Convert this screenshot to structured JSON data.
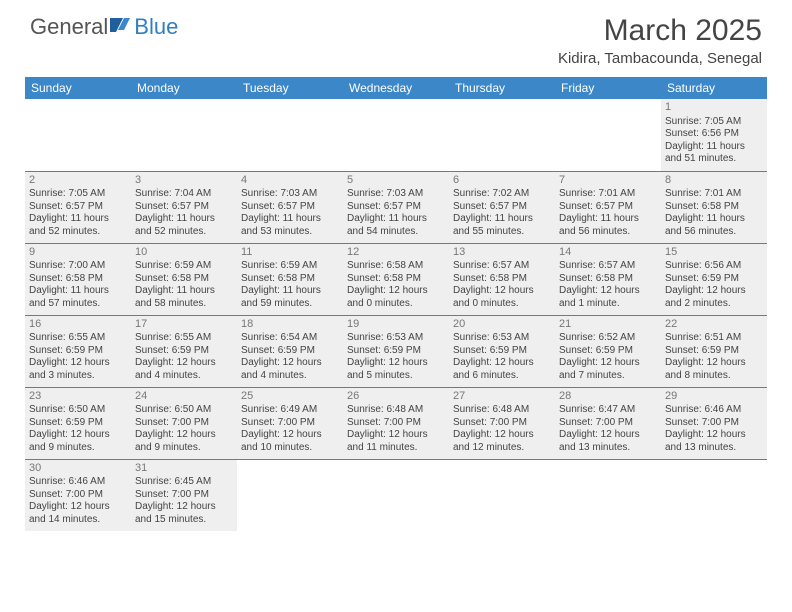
{
  "logo": {
    "text1": "General",
    "text2": "Blue"
  },
  "title": "March 2025",
  "location": "Kidira, Tambacounda, Senegal",
  "dayHeaders": [
    "Sunday",
    "Monday",
    "Tuesday",
    "Wednesday",
    "Thursday",
    "Friday",
    "Saturday"
  ],
  "colors": {
    "headerBg": "#3b87c8",
    "headerText": "#ffffff",
    "border": "#3b87c8",
    "shaded": "#efefef",
    "logoBlue": "#2f7fc4"
  },
  "weeks": [
    [
      null,
      null,
      null,
      null,
      null,
      null,
      {
        "n": "1",
        "sr": "Sunrise: 7:05 AM",
        "ss": "Sunset: 6:56 PM",
        "dl": "Daylight: 11 hours and 51 minutes."
      }
    ],
    [
      {
        "n": "2",
        "sr": "Sunrise: 7:05 AM",
        "ss": "Sunset: 6:57 PM",
        "dl": "Daylight: 11 hours and 52 minutes."
      },
      {
        "n": "3",
        "sr": "Sunrise: 7:04 AM",
        "ss": "Sunset: 6:57 PM",
        "dl": "Daylight: 11 hours and 52 minutes."
      },
      {
        "n": "4",
        "sr": "Sunrise: 7:03 AM",
        "ss": "Sunset: 6:57 PM",
        "dl": "Daylight: 11 hours and 53 minutes."
      },
      {
        "n": "5",
        "sr": "Sunrise: 7:03 AM",
        "ss": "Sunset: 6:57 PM",
        "dl": "Daylight: 11 hours and 54 minutes."
      },
      {
        "n": "6",
        "sr": "Sunrise: 7:02 AM",
        "ss": "Sunset: 6:57 PM",
        "dl": "Daylight: 11 hours and 55 minutes."
      },
      {
        "n": "7",
        "sr": "Sunrise: 7:01 AM",
        "ss": "Sunset: 6:57 PM",
        "dl": "Daylight: 11 hours and 56 minutes."
      },
      {
        "n": "8",
        "sr": "Sunrise: 7:01 AM",
        "ss": "Sunset: 6:58 PM",
        "dl": "Daylight: 11 hours and 56 minutes."
      }
    ],
    [
      {
        "n": "9",
        "sr": "Sunrise: 7:00 AM",
        "ss": "Sunset: 6:58 PM",
        "dl": "Daylight: 11 hours and 57 minutes."
      },
      {
        "n": "10",
        "sr": "Sunrise: 6:59 AM",
        "ss": "Sunset: 6:58 PM",
        "dl": "Daylight: 11 hours and 58 minutes."
      },
      {
        "n": "11",
        "sr": "Sunrise: 6:59 AM",
        "ss": "Sunset: 6:58 PM",
        "dl": "Daylight: 11 hours and 59 minutes."
      },
      {
        "n": "12",
        "sr": "Sunrise: 6:58 AM",
        "ss": "Sunset: 6:58 PM",
        "dl": "Daylight: 12 hours and 0 minutes."
      },
      {
        "n": "13",
        "sr": "Sunrise: 6:57 AM",
        "ss": "Sunset: 6:58 PM",
        "dl": "Daylight: 12 hours and 0 minutes."
      },
      {
        "n": "14",
        "sr": "Sunrise: 6:57 AM",
        "ss": "Sunset: 6:58 PM",
        "dl": "Daylight: 12 hours and 1 minute."
      },
      {
        "n": "15",
        "sr": "Sunrise: 6:56 AM",
        "ss": "Sunset: 6:59 PM",
        "dl": "Daylight: 12 hours and 2 minutes."
      }
    ],
    [
      {
        "n": "16",
        "sr": "Sunrise: 6:55 AM",
        "ss": "Sunset: 6:59 PM",
        "dl": "Daylight: 12 hours and 3 minutes."
      },
      {
        "n": "17",
        "sr": "Sunrise: 6:55 AM",
        "ss": "Sunset: 6:59 PM",
        "dl": "Daylight: 12 hours and 4 minutes."
      },
      {
        "n": "18",
        "sr": "Sunrise: 6:54 AM",
        "ss": "Sunset: 6:59 PM",
        "dl": "Daylight: 12 hours and 4 minutes."
      },
      {
        "n": "19",
        "sr": "Sunrise: 6:53 AM",
        "ss": "Sunset: 6:59 PM",
        "dl": "Daylight: 12 hours and 5 minutes."
      },
      {
        "n": "20",
        "sr": "Sunrise: 6:53 AM",
        "ss": "Sunset: 6:59 PM",
        "dl": "Daylight: 12 hours and 6 minutes."
      },
      {
        "n": "21",
        "sr": "Sunrise: 6:52 AM",
        "ss": "Sunset: 6:59 PM",
        "dl": "Daylight: 12 hours and 7 minutes."
      },
      {
        "n": "22",
        "sr": "Sunrise: 6:51 AM",
        "ss": "Sunset: 6:59 PM",
        "dl": "Daylight: 12 hours and 8 minutes."
      }
    ],
    [
      {
        "n": "23",
        "sr": "Sunrise: 6:50 AM",
        "ss": "Sunset: 6:59 PM",
        "dl": "Daylight: 12 hours and 9 minutes."
      },
      {
        "n": "24",
        "sr": "Sunrise: 6:50 AM",
        "ss": "Sunset: 7:00 PM",
        "dl": "Daylight: 12 hours and 9 minutes."
      },
      {
        "n": "25",
        "sr": "Sunrise: 6:49 AM",
        "ss": "Sunset: 7:00 PM",
        "dl": "Daylight: 12 hours and 10 minutes."
      },
      {
        "n": "26",
        "sr": "Sunrise: 6:48 AM",
        "ss": "Sunset: 7:00 PM",
        "dl": "Daylight: 12 hours and 11 minutes."
      },
      {
        "n": "27",
        "sr": "Sunrise: 6:48 AM",
        "ss": "Sunset: 7:00 PM",
        "dl": "Daylight: 12 hours and 12 minutes."
      },
      {
        "n": "28",
        "sr": "Sunrise: 6:47 AM",
        "ss": "Sunset: 7:00 PM",
        "dl": "Daylight: 12 hours and 13 minutes."
      },
      {
        "n": "29",
        "sr": "Sunrise: 6:46 AM",
        "ss": "Sunset: 7:00 PM",
        "dl": "Daylight: 12 hours and 13 minutes."
      }
    ],
    [
      {
        "n": "30",
        "sr": "Sunrise: 6:46 AM",
        "ss": "Sunset: 7:00 PM",
        "dl": "Daylight: 12 hours and 14 minutes."
      },
      {
        "n": "31",
        "sr": "Sunrise: 6:45 AM",
        "ss": "Sunset: 7:00 PM",
        "dl": "Daylight: 12 hours and 15 minutes."
      },
      null,
      null,
      null,
      null,
      null
    ]
  ]
}
